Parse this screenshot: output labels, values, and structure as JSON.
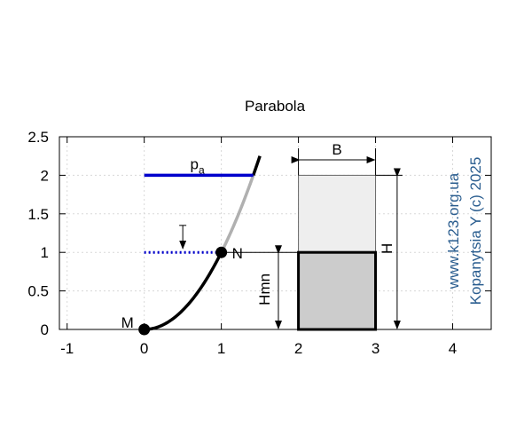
{
  "chart_data": {
    "type": "line",
    "title": "Parabola",
    "xlim": [
      -1.1,
      4.5
    ],
    "ylim": [
      0,
      2.5
    ],
    "xticks": [
      -1,
      0,
      1,
      2,
      3,
      4
    ],
    "yticks": [
      0,
      0.5,
      1,
      1.5,
      2,
      2.5
    ],
    "xtick_labels": [
      "-1",
      "0",
      "1",
      "2",
      "3",
      "4"
    ],
    "ytick_labels": [
      "0",
      "0.5",
      "1",
      "1.5",
      "2",
      "2.5"
    ],
    "grid": true,
    "series": [
      {
        "name": "parabola y = x^2 (0 to 1)",
        "x_range": [
          0,
          1
        ],
        "color": "#000000",
        "style": "solid-thick"
      },
      {
        "name": "parabola y = x^2 (1 to 1.41)",
        "x_range": [
          1,
          1.414
        ],
        "color": "#b0b0b0",
        "style": "solid-thick"
      },
      {
        "name": "parabola y = x^2 (1.41 to 1.5)",
        "x_range": [
          1.414,
          1.5
        ],
        "color": "#000000",
        "style": "solid-thick"
      },
      {
        "name": "pressure level pa",
        "x": [
          0,
          1.414
        ],
        "y": [
          2,
          2
        ],
        "color": "#0000cc",
        "style": "solid"
      },
      {
        "name": "level N",
        "x": [
          0,
          1
        ],
        "y": [
          1,
          1
        ],
        "color": "#0000cc",
        "style": "dotted"
      }
    ],
    "points": [
      {
        "name": "M",
        "x": 0,
        "y": 0
      },
      {
        "name": "N",
        "x": 1,
        "y": 1
      }
    ],
    "rectangles": [
      {
        "name": "upper block",
        "x": [
          2,
          3
        ],
        "y": [
          1,
          2
        ],
        "fill": "#eeeeee"
      },
      {
        "name": "lower block",
        "x": [
          2,
          3
        ],
        "y": [
          0,
          1
        ],
        "fill": "#cccccc"
      }
    ],
    "annotations": {
      "pa_main": "p",
      "pa_sub": "a",
      "N": "N",
      "M": "M",
      "B": "B",
      "H": "H",
      "Hmn": "Hmn"
    }
  },
  "watermark": {
    "line1": "www.k123.org.ua",
    "line2": "Kopanytsia Y (c)  2025"
  }
}
